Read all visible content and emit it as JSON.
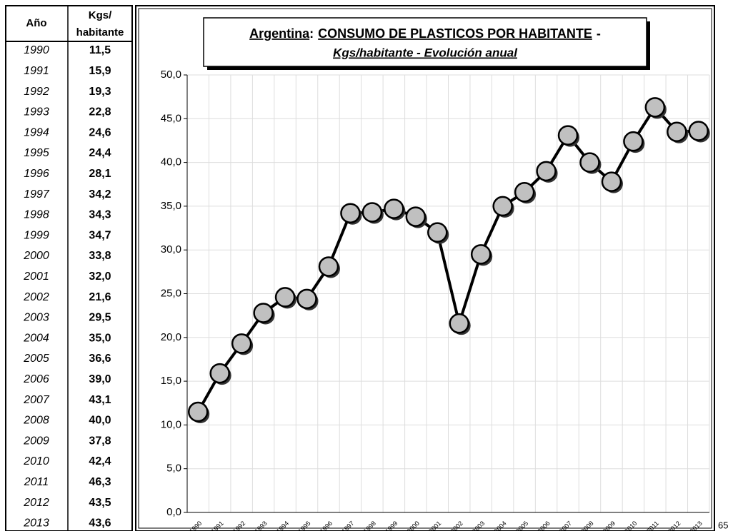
{
  "table": {
    "header": [
      "Año",
      "Kgs/",
      "habitante"
    ],
    "rows": [
      [
        "1990",
        "11,5"
      ],
      [
        "1991",
        "15,9"
      ],
      [
        "1992",
        "19,3"
      ],
      [
        "1993",
        "22,8"
      ],
      [
        "1994",
        "24,6"
      ],
      [
        "1995",
        "24,4"
      ],
      [
        "1996",
        "28,1"
      ],
      [
        "1997",
        "34,2"
      ],
      [
        "1998",
        "34,3"
      ],
      [
        "1999",
        "34,7"
      ],
      [
        "2000",
        "33,8"
      ],
      [
        "2001",
        "32,0"
      ],
      [
        "2002",
        "21,6"
      ],
      [
        "2003",
        "29,5"
      ],
      [
        "2004",
        "35,0"
      ],
      [
        "2005",
        "36,6"
      ],
      [
        "2006",
        "39,0"
      ],
      [
        "2007",
        "43,1"
      ],
      [
        "2008",
        "40,0"
      ],
      [
        "2009",
        "37,8"
      ],
      [
        "2010",
        "42,4"
      ],
      [
        "2011",
        "46,3"
      ],
      [
        "2012",
        "43,5"
      ],
      [
        "2013",
        "43,6"
      ]
    ]
  },
  "chart_data": {
    "type": "line",
    "title": {
      "country": "Argentina",
      "sep": ":",
      "main": "CONSUMO DE PLASTICOS POR HABITANTE",
      "dash": "-"
    },
    "subtitle": "Kgs/habitante - Evolución anual",
    "categories": [
      "1990",
      "1991",
      "1992",
      "1993",
      "1994",
      "1995",
      "1996",
      "1997",
      "1998",
      "1999",
      "2000",
      "2001",
      "2002",
      "2003",
      "2004",
      "2005",
      "2006",
      "2007",
      "2008",
      "2009",
      "2010",
      "2011",
      "2012",
      "2013"
    ],
    "values": [
      11.5,
      15.9,
      19.3,
      22.8,
      24.6,
      24.4,
      28.1,
      34.2,
      34.3,
      34.7,
      33.8,
      32.0,
      21.6,
      29.5,
      35.0,
      36.6,
      39.0,
      43.1,
      40.0,
      37.8,
      42.4,
      46.3,
      43.5,
      43.6
    ],
    "color": "#000000",
    "marker_color": "#c0c0c0",
    "ylim": [
      0,
      50
    ],
    "yticks": [
      {
        "value": 0,
        "label": "0,0"
      },
      {
        "value": 5,
        "label": "5,0"
      },
      {
        "value": 10,
        "label": "10,0"
      },
      {
        "value": 15,
        "label": "15,0"
      },
      {
        "value": 20,
        "label": "20,0"
      },
      {
        "value": 25,
        "label": "25,0"
      },
      {
        "value": 30,
        "label": "30,0"
      },
      {
        "value": 35,
        "label": "35,0"
      },
      {
        "value": 40,
        "label": "40,0"
      },
      {
        "value": 45,
        "label": "45,0"
      },
      {
        "value": 50,
        "label": "50,0"
      }
    ],
    "grid": true
  },
  "page_number": "65"
}
